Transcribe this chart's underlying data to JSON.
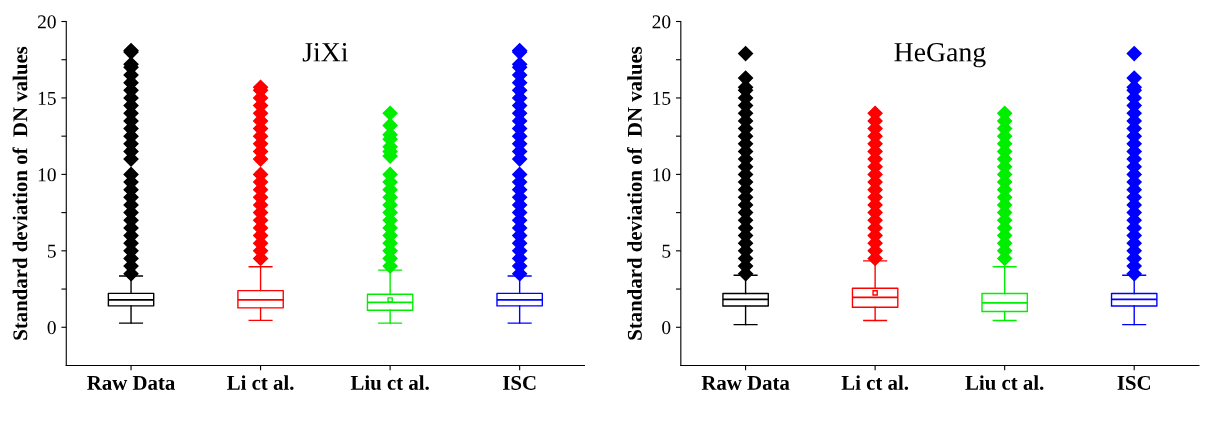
{
  "chart_data": [
    {
      "type": "box",
      "title": "JiXi",
      "ylabel": "Standard deviation of  DN values",
      "categories": [
        "Raw Data",
        "Li ct al.",
        "Liu ct al.",
        "ISC"
      ],
      "colors": [
        "#000000",
        "#ff0000",
        "#00ee00",
        "#0000ff"
      ],
      "boxes": [
        {
          "low": 0.27,
          "q1": 1.4,
          "median": 1.79,
          "q3": 2.22,
          "high": 3.35,
          "outliers": [
            3.5,
            4,
            4.5,
            5,
            5.5,
            6,
            6.5,
            7,
            7.5,
            8,
            8.5,
            9,
            9.5,
            10,
            11,
            11.5,
            12,
            12.5,
            13,
            13.5,
            14,
            14.5,
            15,
            15.5,
            16,
            16.5,
            17,
            17.2,
            18,
            18.1
          ]
        },
        {
          "low": 0.45,
          "q1": 1.27,
          "median": 1.79,
          "q3": 2.4,
          "high": 3.96,
          "outliers": [
            4.5,
            5,
            5.5,
            6,
            6.5,
            7,
            7.5,
            8,
            8.5,
            9,
            9.5,
            10,
            11,
            11.5,
            12,
            12.5,
            13,
            13.5,
            14,
            14.5,
            15,
            15.5,
            15.7
          ]
        },
        {
          "low": 0.27,
          "q1": 1.11,
          "median": 1.63,
          "q3": 2.16,
          "high": 3.74,
          "mean": 1.79,
          "outliers": [
            4,
            4.5,
            5,
            5.5,
            6,
            6.5,
            7,
            7.5,
            8,
            8.5,
            9,
            9.5,
            10,
            11.2,
            11.5,
            11.8,
            12.3,
            12.6,
            13.2,
            14
          ]
        },
        {
          "low": 0.27,
          "q1": 1.4,
          "median": 1.79,
          "q3": 2.22,
          "high": 3.35,
          "outliers": [
            3.5,
            4,
            4.5,
            5,
            5.5,
            6,
            6.5,
            7,
            7.5,
            8,
            8.5,
            9,
            9.5,
            10,
            11,
            11.5,
            12,
            12.5,
            13,
            13.5,
            14,
            14.5,
            15,
            15.5,
            16,
            16.5,
            17,
            17.2,
            18,
            18.1
          ]
        }
      ],
      "ylim": [
        -2.5,
        20
      ],
      "yticks": [
        0,
        {
          "value": 2.5,
          "label": null
        },
        5,
        {
          "value": 7.5,
          "label": null
        },
        10,
        {
          "value": 12.5,
          "label": null
        },
        15,
        {
          "value": 17.5,
          "label": null
        },
        20
      ],
      "grid": false,
      "marker": "diamond"
    },
    {
      "type": "box",
      "title": "HeGang",
      "ylabel": "Standard deviation of  DN values",
      "categories": [
        "Raw Data",
        "Li ct al.",
        "Liu ct al.",
        "ISC"
      ],
      "colors": [
        "#000000",
        "#ff0000",
        "#00ee00",
        "#0000ff"
      ],
      "boxes": [
        {
          "low": 0.17,
          "q1": 1.39,
          "median": 1.82,
          "q3": 2.21,
          "high": 3.4,
          "outliers": [
            3.5,
            4,
            4.5,
            5,
            5.5,
            6,
            6.5,
            7,
            7.5,
            8,
            8.5,
            9,
            9.5,
            10,
            10.5,
            11,
            11.5,
            12,
            12.5,
            13,
            13.5,
            14,
            14.5,
            15,
            15.5,
            15.7,
            16.3,
            17.9
          ]
        },
        {
          "low": 0.44,
          "q1": 1.31,
          "median": 1.96,
          "q3": 2.55,
          "high": 4.34,
          "mean": 2.25,
          "outliers": [
            4.5,
            5,
            5.5,
            6,
            6.5,
            7,
            7.5,
            8,
            8.5,
            9,
            9.5,
            10,
            10.5,
            11,
            11.5,
            12,
            12.5,
            13,
            13.5,
            14
          ]
        },
        {
          "low": 0.44,
          "q1": 1.03,
          "median": 1.6,
          "q3": 2.21,
          "high": 3.96,
          "outliers": [
            4.5,
            5,
            5.5,
            6,
            6.5,
            7,
            7.5,
            8,
            8.5,
            9,
            9.5,
            10,
            10.5,
            11,
            11.5,
            12,
            12.5,
            13,
            13.5,
            14
          ]
        },
        {
          "low": 0.17,
          "q1": 1.39,
          "median": 1.82,
          "q3": 2.21,
          "high": 3.4,
          "outliers": [
            3.5,
            4,
            4.5,
            5,
            5.5,
            6,
            6.5,
            7,
            7.5,
            8,
            8.5,
            9,
            9.5,
            10,
            10.5,
            11,
            11.5,
            12,
            12.5,
            13,
            13.5,
            14,
            14.5,
            15,
            15.5,
            15.7,
            16.3,
            17.9
          ]
        }
      ],
      "ylim": [
        -2.5,
        20
      ],
      "yticks": [
        0,
        {
          "value": 2.5,
          "label": null
        },
        5,
        {
          "value": 7.5,
          "label": null
        },
        10,
        {
          "value": 12.5,
          "label": null
        },
        15,
        {
          "value": 17.5,
          "label": null
        },
        20
      ],
      "grid": false,
      "marker": "diamond"
    }
  ]
}
